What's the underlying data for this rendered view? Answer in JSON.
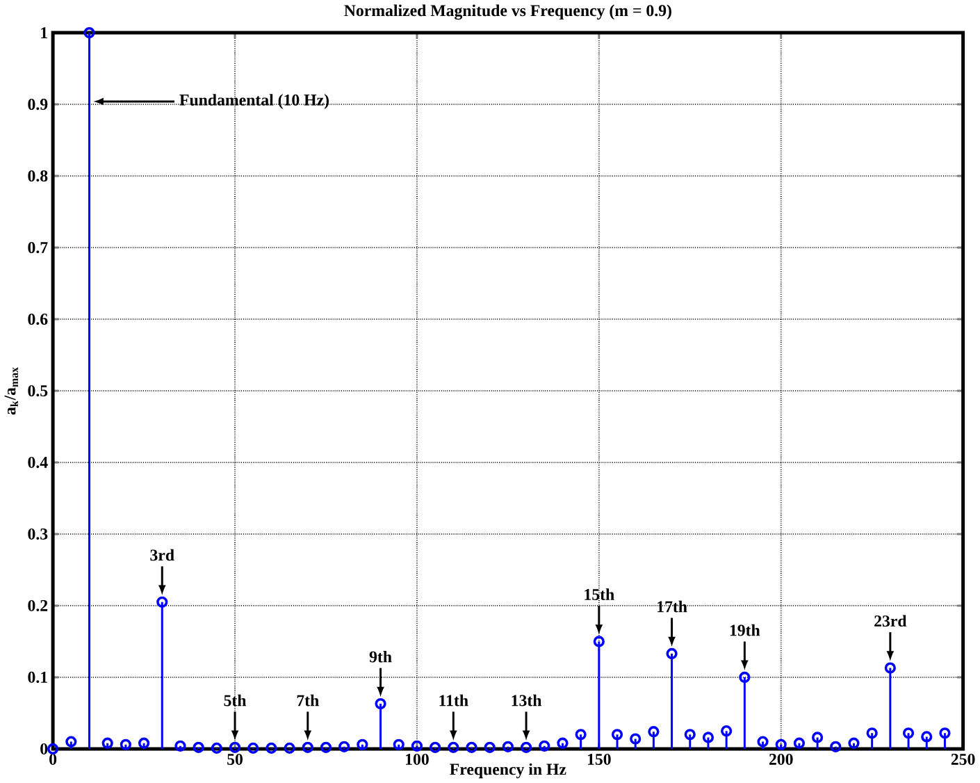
{
  "chart_data": {
    "type": "lollipop",
    "title": "Normalized Magnitude vs Frequency (m = 0.9)",
    "xlabel": "Frequency in Hz",
    "ylabel": "a$_{k}$/a$_{max}$",
    "x": [
      0,
      5,
      10,
      15,
      20,
      25,
      30,
      35,
      40,
      45,
      50,
      55,
      60,
      65,
      70,
      75,
      80,
      85,
      90,
      95,
      100,
      105,
      110,
      115,
      120,
      125,
      130,
      135,
      140,
      145,
      150,
      155,
      160,
      165,
      170,
      175,
      180,
      185,
      190,
      195,
      200,
      205,
      210,
      215,
      220,
      225,
      230,
      235,
      240,
      245
    ],
    "series": [
      {
        "color": "#0000ff",
        "values": [
          0,
          0.01,
          1,
          0.008,
          0.006,
          0.008,
          0.205,
          0.004,
          0.002,
          0.001,
          0.002,
          0.001,
          0.001,
          0.001,
          0.002,
          0.002,
          0.003,
          0.006,
          0.063,
          0.006,
          0.004,
          0.002,
          0.002,
          0.002,
          0.002,
          0.003,
          0.002,
          0.004,
          0.008,
          0.02,
          0.15,
          0.02,
          0.014,
          0.024,
          0.133,
          0.02,
          0.016,
          0.025,
          0.1,
          0.01,
          0.006,
          0.008,
          0.016,
          0.003,
          0.008,
          0.022,
          0.113,
          0.022,
          0.017,
          0.022
        ]
      }
    ],
    "xlim": [
      0,
      250
    ],
    "xticks": [
      0,
      50,
      100,
      150,
      200,
      250
    ],
    "ylim": [
      0,
      1
    ],
    "yticks": [
      0,
      0.1,
      0.2,
      0.3,
      0.4,
      0.5,
      0.6,
      0.7,
      0.8,
      0.9,
      1
    ],
    "grid": true,
    "marker": "circle",
    "line_style": "solid",
    "annotations": [
      "Fundamental (10 Hz)",
      {
        "text": "3rd",
        "x": 30,
        "y": 0.205
      },
      {
        "text": "5th",
        "x": 50,
        "y": 0.002
      },
      {
        "text": "7th",
        "x": 70,
        "y": 0.002
      },
      {
        "text": "9th",
        "x": 90,
        "y": 0.063
      },
      {
        "text": "11th",
        "x": 110,
        "y": 0.002
      },
      {
        "text": "13th",
        "x": 130,
        "y": 0.002
      },
      {
        "text": "15th",
        "x": 150,
        "y": 0.15
      },
      {
        "text": "17th",
        "x": 170,
        "y": 0.133
      },
      {
        "text": "19th",
        "x": 190,
        "y": 0.1
      },
      {
        "text": "23rd",
        "x": 230,
        "y": 0.113
      }
    ]
  }
}
